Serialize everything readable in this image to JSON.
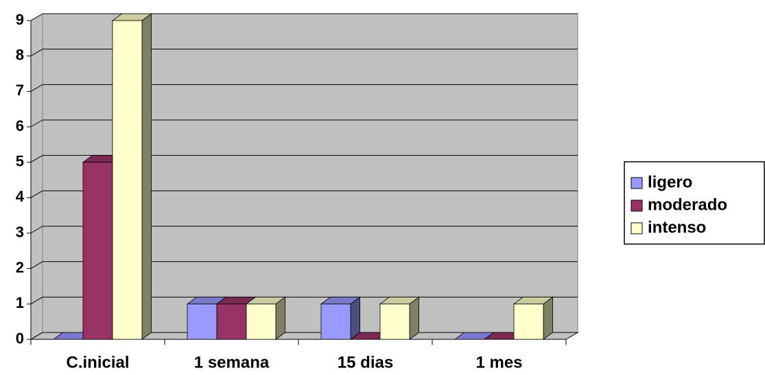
{
  "chart_data": {
    "type": "bar3d",
    "categories": [
      "C.inicial",
      "1 semana",
      "15 dias",
      "1 mes"
    ],
    "series": [
      {
        "name": "ligero",
        "color": "#9999ff",
        "values": [
          0,
          1,
          1,
          0
        ]
      },
      {
        "name": "moderado",
        "color": "#993366",
        "values": [
          5,
          1,
          0,
          0
        ]
      },
      {
        "name": "intenso",
        "color": "#ffffcc",
        "values": [
          9,
          1,
          1,
          1
        ]
      }
    ],
    "ylim": [
      0,
      9
    ],
    "yticks": [
      0,
      1,
      2,
      3,
      4,
      5,
      6,
      7,
      8,
      9
    ],
    "grid": true,
    "legend": "right"
  }
}
